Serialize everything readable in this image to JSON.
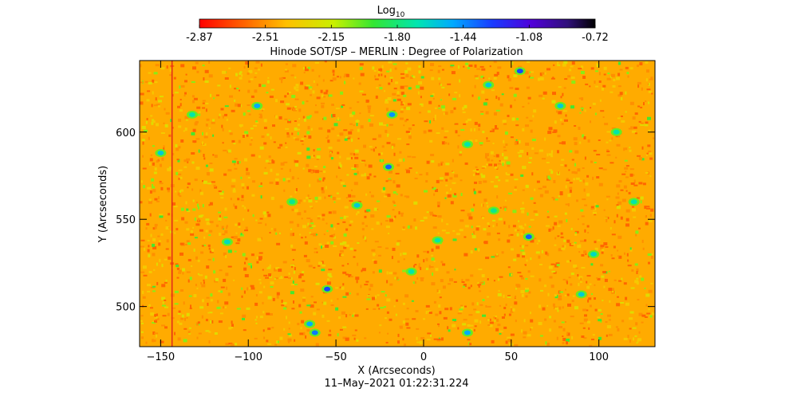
{
  "colorbar": {
    "label": "Log",
    "label_sub": "10",
    "ticks": [
      "-2.87",
      "-2.51",
      "-2.15",
      "-1.80",
      "-1.44",
      "-1.08",
      "-0.72"
    ],
    "range": [
      -2.87,
      -0.72
    ]
  },
  "chart_data": {
    "type": "heatmap",
    "title": "Hinode SOT/SP – MERLIN : Degree of Polarization",
    "xlabel": "X (Arcseconds)",
    "ylabel": "Y (Arcseconds)",
    "xlim": [
      -162,
      132
    ],
    "ylim": [
      477,
      641
    ],
    "xticks": [
      {
        "value": -150,
        "label": "−150"
      },
      {
        "value": -100,
        "label": "−100"
      },
      {
        "value": -50,
        "label": "−50"
      },
      {
        "value": 0,
        "label": "0"
      },
      {
        "value": 50,
        "label": "50"
      },
      {
        "value": 100,
        "label": "100"
      }
    ],
    "yticks": [
      {
        "value": 500,
        "label": "500"
      },
      {
        "value": 550,
        "label": "550"
      },
      {
        "value": 600,
        "label": "600"
      }
    ],
    "value_scale": "log10",
    "background_value": -2.45,
    "red_line_x": -143.5,
    "blobs": [
      {
        "x": 55,
        "y": 635,
        "v": -1.3
      },
      {
        "x": -95,
        "y": 615,
        "v": -1.5
      },
      {
        "x": -18,
        "y": 610,
        "v": -1.45
      },
      {
        "x": -20,
        "y": 580,
        "v": -1.35
      },
      {
        "x": 37,
        "y": 627,
        "v": -1.6
      },
      {
        "x": 78,
        "y": 615,
        "v": -1.6
      },
      {
        "x": -132,
        "y": 610,
        "v": -1.7
      },
      {
        "x": 25,
        "y": 593,
        "v": -1.7
      },
      {
        "x": -55,
        "y": 510,
        "v": -1.3
      },
      {
        "x": -65,
        "y": 490,
        "v": -1.5
      },
      {
        "x": -62,
        "y": 485,
        "v": -1.4
      },
      {
        "x": 25,
        "y": 485,
        "v": -1.5
      },
      {
        "x": 60,
        "y": 540,
        "v": -1.35
      },
      {
        "x": -112,
        "y": 537,
        "v": -1.65
      },
      {
        "x": -38,
        "y": 558,
        "v": -1.6
      },
      {
        "x": 90,
        "y": 507,
        "v": -1.6
      },
      {
        "x": 120,
        "y": 560,
        "v": -1.7
      },
      {
        "x": -150,
        "y": 588,
        "v": -1.6
      },
      {
        "x": 8,
        "y": 538,
        "v": -1.7
      },
      {
        "x": 97,
        "y": 530,
        "v": -1.65
      },
      {
        "x": -7,
        "y": 520,
        "v": -1.7
      },
      {
        "x": 40,
        "y": 555,
        "v": -1.75
      },
      {
        "x": -75,
        "y": 560,
        "v": -1.75
      },
      {
        "x": 110,
        "y": 600,
        "v": -1.7
      }
    ]
  },
  "timestamp": "11–May–2021 01:22:31.224"
}
